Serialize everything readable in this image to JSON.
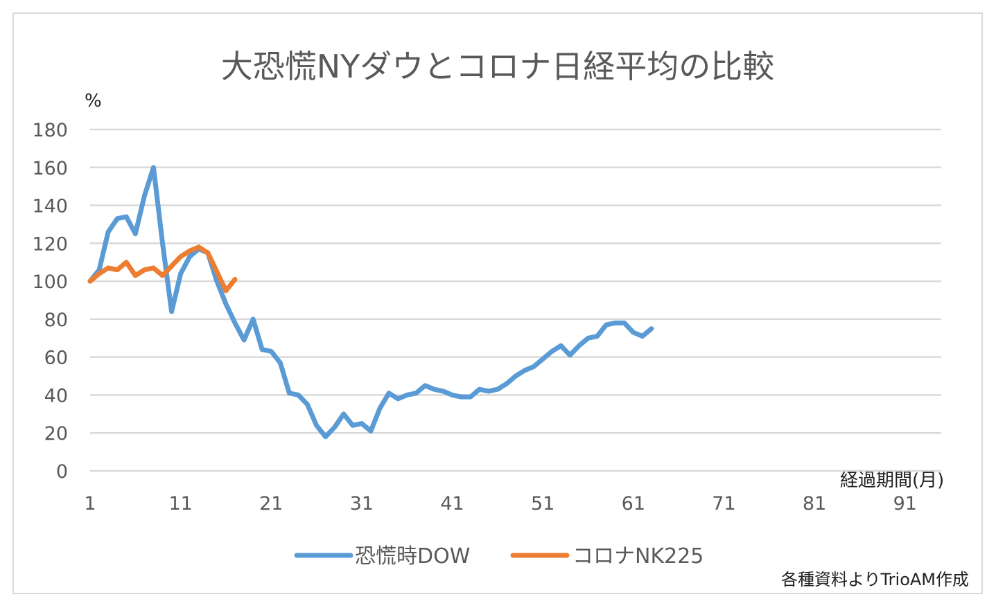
{
  "chart_data": {
    "type": "line",
    "title": "大恐慌NYダウとコロナ日経平均の比較",
    "ylabel": "%",
    "xlabel": "経過期間(月)",
    "ylim": [
      0,
      180
    ],
    "yticks": [
      0,
      20,
      40,
      60,
      80,
      100,
      120,
      140,
      160,
      180
    ],
    "xlim": [
      1,
      95
    ],
    "xticks": [
      1,
      11,
      21,
      31,
      41,
      51,
      61,
      71,
      81,
      91
    ],
    "grid": true,
    "legend_position": "bottom",
    "series": [
      {
        "name": "恐慌時DOW",
        "color": "#5b9bd5",
        "values": [
          100,
          106,
          126,
          133,
          134,
          125,
          145,
          160,
          120,
          84,
          104,
          113,
          117,
          115,
          100,
          88,
          78,
          69,
          80,
          64,
          63,
          57,
          41,
          40,
          35,
          24,
          18,
          23,
          30,
          24,
          25,
          21,
          33,
          41,
          38,
          40,
          41,
          45,
          43,
          42,
          40,
          39,
          39,
          43,
          42,
          43,
          46,
          50,
          53,
          55,
          59,
          63,
          66,
          61,
          66,
          70,
          71,
          77,
          78,
          78,
          73,
          71,
          75
        ]
      },
      {
        "name": "コロナNK225",
        "color": "#ed7d31",
        "values": [
          100,
          104,
          107,
          106,
          110,
          103,
          106,
          107,
          103,
          108,
          113,
          116,
          118,
          115,
          105,
          95,
          101
        ]
      }
    ]
  },
  "source_note": "各種資料よりTrioAM作成"
}
